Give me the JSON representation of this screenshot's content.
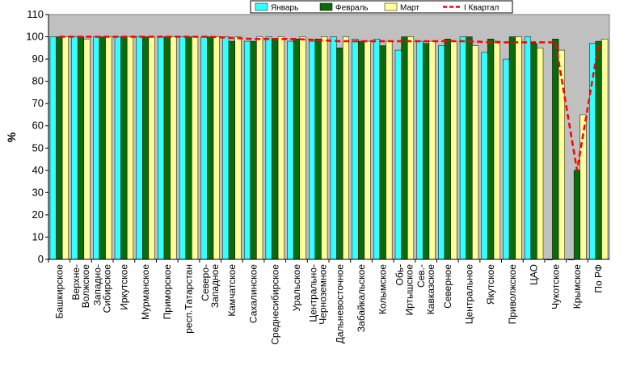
{
  "chart_data": {
    "type": "bar",
    "ylabel": "%",
    "ylim": [
      0,
      110
    ],
    "yticks": [
      0,
      10,
      20,
      30,
      40,
      50,
      60,
      70,
      80,
      90,
      100,
      110
    ],
    "grid": false,
    "legend_position": "top-right",
    "categories": [
      "Башкирское",
      "Верхне-Волжское",
      "Западно-Сибирское",
      "Иркутское",
      "Мурманское",
      "Приморское",
      "респ.Татарстан",
      "Северо-Западное",
      "Камчатское",
      "Сахалинское",
      "Среднесибирское",
      "Уральское",
      "Центрально-Черноземное",
      "Дальневосточное",
      "Забайкальское",
      "Колымское",
      "Обь-Иртышское",
      "Сев.-Кавказское",
      "Северное",
      "Центральное",
      "Якутское",
      "Приволжское",
      "ЦАО",
      "Чукотское",
      "Крымское",
      "По РФ"
    ],
    "series": [
      {
        "name": "Январь",
        "kind": "bar",
        "color": "#33ffff",
        "values": [
          100,
          100,
          100,
          100,
          100,
          100,
          100,
          100,
          100,
          98,
          100,
          98,
          98,
          100,
          99,
          99,
          94,
          98,
          96,
          100,
          93,
          90,
          100,
          0,
          0,
          97
        ]
      },
      {
        "name": "Февраль",
        "kind": "bar",
        "color": "#0b6b0b",
        "values": [
          100,
          100,
          100,
          100,
          100,
          100,
          100,
          100,
          98,
          98,
          99,
          99,
          99,
          95,
          98,
          96,
          100,
          97,
          99,
          100,
          99,
          100,
          97,
          99,
          40,
          98
        ]
      },
      {
        "name": "Март",
        "kind": "bar",
        "color": "#ffff99",
        "values": [
          100,
          99,
          100,
          100,
          100,
          100,
          100,
          100,
          100,
          100,
          100,
          100,
          100,
          100,
          98,
          98,
          100,
          98,
          98,
          96,
          98,
          100,
          95,
          94,
          65,
          99
        ]
      },
      {
        "name": "I Квартал",
        "kind": "line",
        "color": "#ff0000",
        "values": [
          100,
          100,
          100,
          100,
          100,
          100,
          100,
          100,
          99.5,
          99,
          99,
          99,
          98.5,
          98,
          98,
          98,
          98,
          98,
          98,
          98,
          97.5,
          97.5,
          97.5,
          97.5,
          40,
          97
        ]
      }
    ]
  }
}
